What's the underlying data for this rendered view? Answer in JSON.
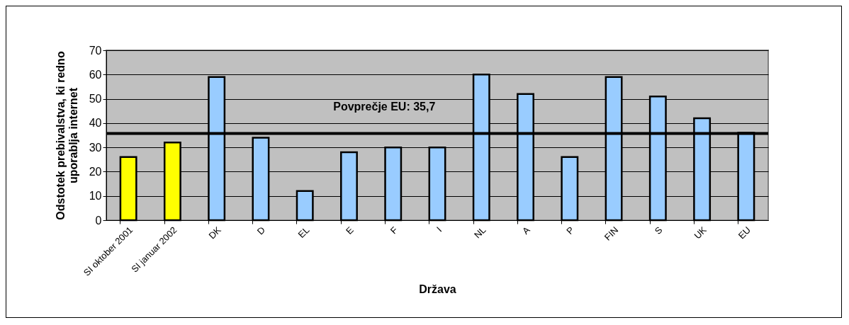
{
  "chart_data": {
    "type": "bar",
    "xlabel": "Država",
    "ylabel": "Odstotek prebivalstva, ki redno uporablja internet",
    "categories": [
      "SI oktober 2001",
      "SI januar 2002",
      "DK",
      "D",
      "EL",
      "E",
      "F",
      "I",
      "NL",
      "A",
      "P",
      "FIN",
      "S",
      "UK",
      "EU"
    ],
    "values": [
      26,
      32,
      59,
      34,
      12,
      28,
      30,
      30,
      60,
      52,
      26,
      59,
      51,
      42,
      36
    ],
    "colors": [
      "#ffff00",
      "#ffff00",
      "#99ccff",
      "#99ccff",
      "#99ccff",
      "#99ccff",
      "#99ccff",
      "#99ccff",
      "#99ccff",
      "#99ccff",
      "#99ccff",
      "#99ccff",
      "#99ccff",
      "#99ccff",
      "#99ccff"
    ],
    "ylim": [
      0,
      70
    ],
    "yticks": [
      0,
      10,
      20,
      30,
      40,
      50,
      60,
      70
    ],
    "grid": "y",
    "ref_lines": [
      {
        "axis": "y",
        "value": 35.7,
        "label": "Povprečje EU: 35,7",
        "color": "#000000"
      }
    ]
  }
}
